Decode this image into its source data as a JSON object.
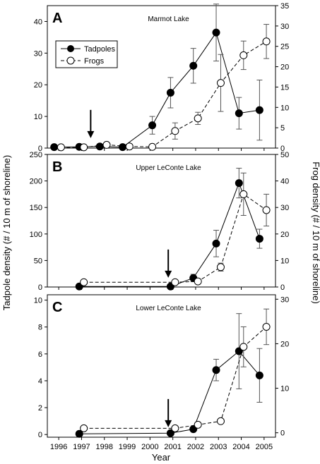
{
  "figure": {
    "xlabel": "Year",
    "ylabel_left": "Tadpole density (# / 10 m of shoreline)",
    "ylabel_right": "Frog density (# / 10 m of shoreline)",
    "legend": [
      "Tadpoles",
      "Frogs"
    ]
  },
  "chart_data": [
    {
      "type": "line",
      "letter": "A",
      "title": "Marmot Lake",
      "xlim": [
        1995.5,
        2005.5
      ],
      "ylim_left": [
        0,
        45
      ],
      "ylim_right": [
        0,
        35
      ],
      "yticks_left": [
        0,
        10,
        20,
        30,
        40
      ],
      "yticks_right": [
        0,
        5,
        10,
        15,
        20,
        25,
        30,
        35
      ],
      "arrow_year": 1997.4,
      "legend_position": "top-left",
      "series": [
        {
          "name": "Tadpoles",
          "axis": "left",
          "marker": "filled",
          "line": "solid",
          "x": [
            1995.8,
            1996.9,
            1997.8,
            1998.8,
            2000.1,
            2000.9,
            2001.9,
            2002.9,
            2003.9,
            2004.8
          ],
          "y": [
            0.3,
            0.4,
            0.5,
            0.3,
            7.2,
            17.5,
            26,
            36.5,
            11,
            12
          ],
          "err": [
            0,
            0,
            0.5,
            0,
            2.8,
            4.8,
            5.5,
            9,
            5,
            9.5
          ]
        },
        {
          "name": "Frogs",
          "axis": "right",
          "marker": "open",
          "line": "dashed",
          "x": [
            1996.1,
            1997.1,
            1998.1,
            1999.1,
            2000.1,
            2001.1,
            2002.1,
            2003.1,
            2004.1,
            2005.1
          ],
          "y": [
            0.2,
            0.2,
            0.8,
            0.4,
            0.3,
            4.2,
            7.3,
            16,
            22.8,
            26.2
          ],
          "err": [
            0,
            0,
            0,
            0,
            0,
            2,
            1.5,
            7,
            3.5,
            4.2
          ]
        }
      ]
    },
    {
      "type": "line",
      "letter": "B",
      "title": "Upper LeConte Lake",
      "xlim": [
        1995.5,
        2005.5
      ],
      "ylim_left": [
        0,
        250
      ],
      "ylim_right": [
        0,
        50
      ],
      "yticks_left": [
        0,
        50,
        100,
        150,
        200,
        250
      ],
      "yticks_right": [
        0,
        10,
        20,
        30,
        40,
        50
      ],
      "arrow_year": 2000.8,
      "series": [
        {
          "name": "Tadpoles",
          "axis": "left",
          "marker": "filled",
          "line": "solid",
          "x": [
            1996.9,
            2000.9,
            2001.9,
            2002.9,
            2003.9,
            2004.8
          ],
          "y": [
            1,
            1,
            17,
            82,
            196,
            91
          ],
          "err": [
            0,
            0,
            7,
            25,
            28,
            18
          ]
        },
        {
          "name": "Frogs",
          "axis": "right",
          "marker": "open",
          "line": "dashed",
          "x": [
            1997.1,
            2001.1,
            2002.1,
            2003.1,
            2004.1,
            2005.1
          ],
          "y": [
            1.8,
            1.8,
            2.1,
            7.5,
            35,
            29
          ],
          "err": [
            0,
            0,
            0,
            1.5,
            8,
            6
          ]
        }
      ]
    },
    {
      "type": "line",
      "letter": "C",
      "title": "Lower LeConte Lake",
      "xlim": [
        1995.5,
        2005.5
      ],
      "ylim_left": [
        -0.2,
        10.4
      ],
      "ylim_right": [
        -1,
        31
      ],
      "yticks_left": [
        0,
        2,
        4,
        6,
        8,
        10
      ],
      "yticks_right": [
        0,
        10,
        20,
        30
      ],
      "arrow_year": 2000.8,
      "series": [
        {
          "name": "Tadpoles",
          "axis": "left",
          "marker": "filled",
          "line": "solid",
          "x": [
            1996.9,
            2000.9,
            2001.9,
            2002.9,
            2003.9,
            2004.8
          ],
          "y": [
            0.05,
            0.1,
            0.4,
            4.8,
            6.2,
            4.4
          ],
          "err": [
            0,
            0,
            0.1,
            0.8,
            2.8,
            2
          ],
          "err_cap_up": [
            0,
            0,
            0,
            0,
            9,
            6.4
          ]
        },
        {
          "name": "Frogs",
          "axis": "right",
          "marker": "open",
          "line": "dashed",
          "x": [
            1997.1,
            2001.1,
            2002.1,
            2003.1,
            2004.1,
            2005.1
          ],
          "y": [
            1,
            1,
            1.8,
            2.6,
            19.3,
            23.8
          ],
          "err": [
            0,
            0,
            0,
            0,
            4.5,
            4
          ]
        }
      ]
    }
  ]
}
